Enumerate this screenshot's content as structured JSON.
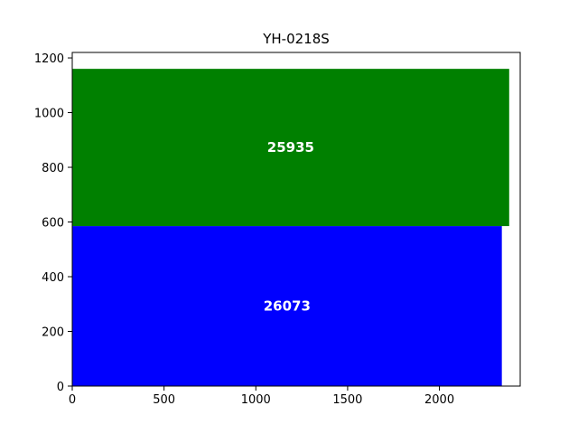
{
  "chart_data": {
    "type": "bar",
    "title": "YH-0218S",
    "xlabel": "",
    "ylabel": "",
    "xlim": [
      0,
      2440
    ],
    "ylim": [
      0,
      1220
    ],
    "xticks": [
      0,
      500,
      1000,
      1500,
      2000
    ],
    "yticks": [
      0,
      200,
      400,
      600,
      800,
      1000,
      1200
    ],
    "grid": false,
    "rects": [
      {
        "label": "26073",
        "x0": 0,
        "x1": 2340,
        "y0": 0,
        "y1": 585,
        "color": "#0000ff"
      },
      {
        "label": "25935",
        "x0": 0,
        "x1": 2380,
        "y0": 585,
        "y1": 1160,
        "color": "#008000"
      }
    ]
  }
}
